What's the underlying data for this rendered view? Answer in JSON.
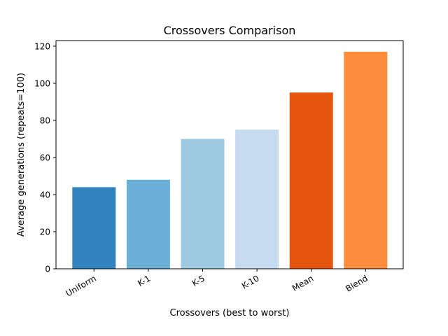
{
  "chart_data": {
    "type": "bar",
    "title": "Crossovers Comparison",
    "xlabel": "Crossovers (best to worst)",
    "ylabel": "Average generations (repeats=100)",
    "categories": [
      "Uniform",
      "K-1",
      "K-5",
      "K-10",
      "Mean",
      "Blend"
    ],
    "values": [
      44,
      48,
      70,
      75,
      95,
      117
    ],
    "colors": [
      "#3182bd",
      "#6baed6",
      "#9ecae1",
      "#c6dbef",
      "#e6550d",
      "#fd8d3c"
    ],
    "ylim": [
      0,
      123
    ],
    "yticks": [
      0,
      20,
      40,
      60,
      80,
      100,
      120
    ],
    "grid": false,
    "legend": "none"
  }
}
